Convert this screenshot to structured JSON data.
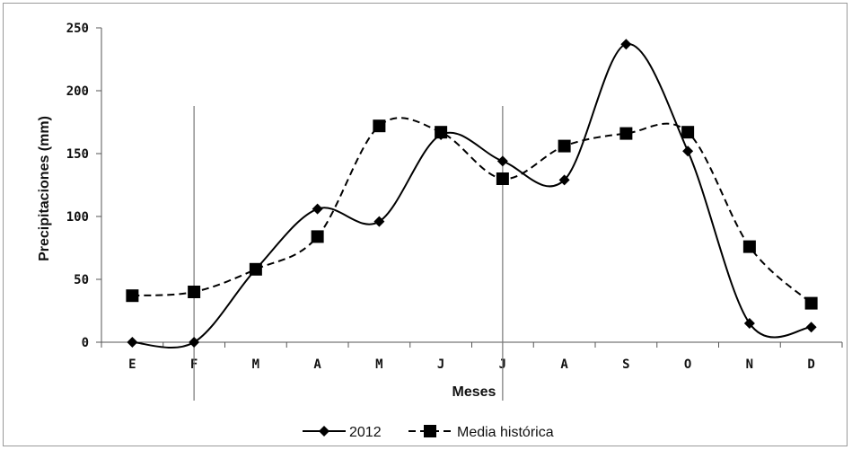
{
  "chart_data": {
    "type": "line",
    "title": "",
    "xlabel": "Meses",
    "ylabel": "Precipitaciones (mm)",
    "categories": [
      "E",
      "F",
      "M",
      "A",
      "M",
      "J",
      "J",
      "A",
      "S",
      "O",
      "N",
      "D"
    ],
    "ylim": [
      0,
      250
    ],
    "yticks": [
      0,
      50,
      100,
      150,
      200,
      250
    ],
    "grid": false,
    "legend": "bottom",
    "series": [
      {
        "name": "2012",
        "style": "solid",
        "marker": "diamond",
        "color": "#000000",
        "values": [
          0,
          0,
          58,
          106,
          96,
          165,
          144,
          129,
          237,
          152,
          15,
          12
        ]
      },
      {
        "name": "Media histórica",
        "style": "dashed",
        "marker": "square",
        "color": "#000000",
        "values": [
          37,
          40,
          58,
          84,
          172,
          167,
          130,
          156,
          166,
          167,
          76,
          31
        ]
      }
    ],
    "reference_lines_after_category_index": [
      1,
      6
    ]
  }
}
